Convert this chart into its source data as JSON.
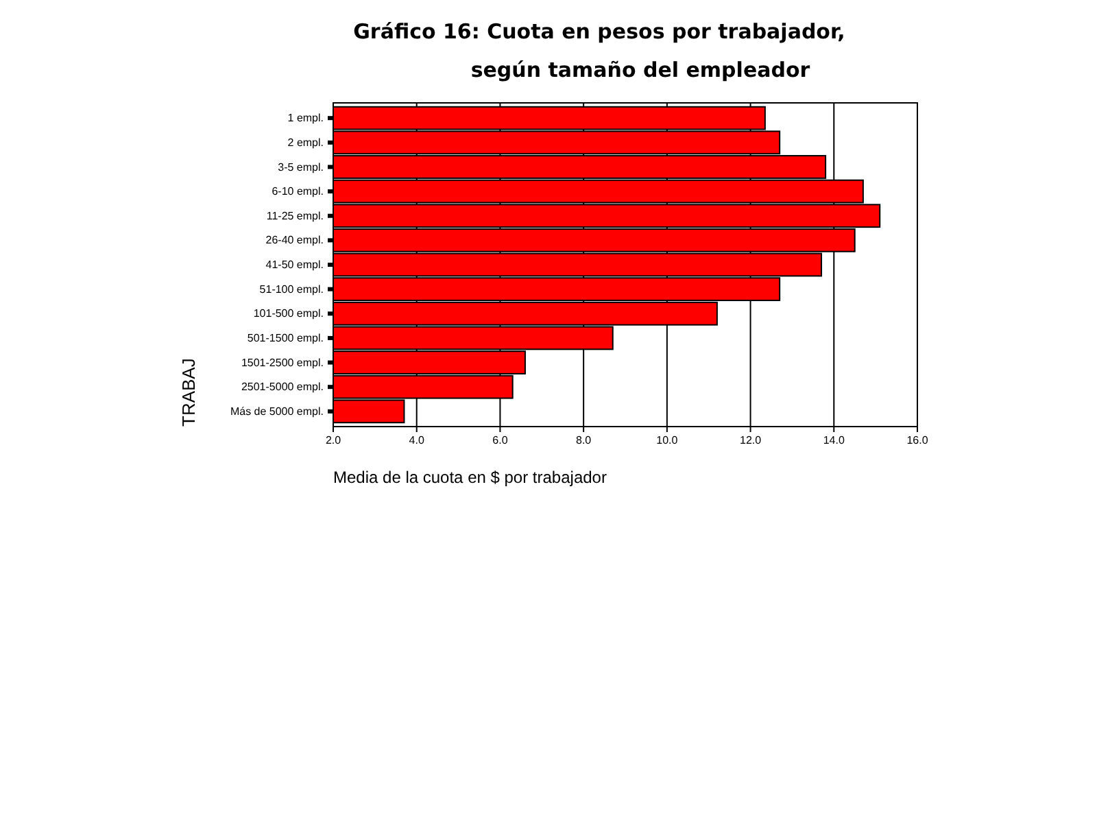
{
  "chart_data": {
    "type": "bar",
    "orientation": "horizontal",
    "title": "Gráfico 16: Cuota en pesos por trabajador,",
    "subtitle": "según tamaño del empleador",
    "xlabel": "Media de la cuota en $ por trabajador",
    "ylabel": "TRABAJ",
    "categories": [
      "1 empl.",
      "2 empl.",
      "3-5 empl.",
      "6-10 empl.",
      "11-25 empl.",
      "26-40 empl.",
      "41-50 empl.",
      "51-100 empl.",
      "101-500 empl.",
      "501-1500 empl.",
      "1501-2500 empl.",
      "2501-5000 empl.",
      "Más de 5000 empl."
    ],
    "values": [
      12.35,
      12.7,
      13.8,
      14.7,
      15.1,
      14.5,
      13.7,
      12.7,
      11.2,
      8.7,
      6.6,
      6.3,
      3.7
    ],
    "color": "#ff0000",
    "xlim": [
      2,
      16
    ],
    "xticks": [
      {
        "value": 2,
        "label": "2.0"
      },
      {
        "value": 4,
        "label": "4.0"
      },
      {
        "value": 6,
        "label": "6.0"
      },
      {
        "value": 8,
        "label": "8.0"
      },
      {
        "value": 10,
        "label": "10.0"
      },
      {
        "value": 12,
        "label": "12.0"
      },
      {
        "value": 14,
        "label": "14.0"
      },
      {
        "value": 16,
        "label": "16.0"
      }
    ],
    "grid": "x"
  }
}
